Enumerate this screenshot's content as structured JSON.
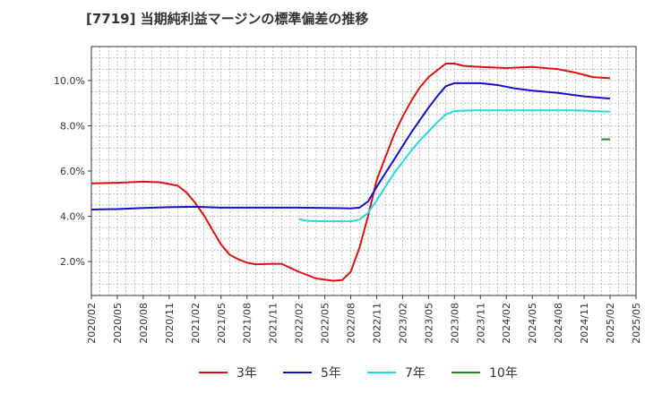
{
  "title": "[7719]  当期純利益マージンの標準偏差の推移",
  "chart_data": {
    "type": "line",
    "title": "[7719]  当期純利益マージンの標準偏差の推移",
    "xlabel": "",
    "ylabel": "",
    "x_ticks": [
      "2020/02",
      "2020/05",
      "2020/08",
      "2020/11",
      "2021/02",
      "2021/05",
      "2021/08",
      "2021/11",
      "2022/02",
      "2022/05",
      "2022/08",
      "2022/11",
      "2023/02",
      "2023/05",
      "2023/08",
      "2023/11",
      "2024/02",
      "2024/05",
      "2024/08",
      "2024/11",
      "2025/02",
      "2025/05"
    ],
    "y_ticks": [
      "2.0%",
      "4.0%",
      "6.0%",
      "8.0%",
      "10.0%"
    ],
    "xlim": [
      "2020/02",
      "2025/05"
    ],
    "ylim": [
      0.5,
      11.5
    ],
    "grid": true,
    "legend_position": "bottom",
    "series": [
      {
        "name": "3年",
        "color": "#dd1111",
        "points": [
          [
            "2020/02",
            5.45
          ],
          [
            "2020/05",
            5.48
          ],
          [
            "2020/08",
            5.53
          ],
          [
            "2020/10",
            5.5
          ],
          [
            "2020/12",
            5.35
          ],
          [
            "2021/01",
            5.05
          ],
          [
            "2021/02",
            4.6
          ],
          [
            "2021/03",
            4.05
          ],
          [
            "2021/04",
            3.4
          ],
          [
            "2021/05",
            2.75
          ],
          [
            "2021/06",
            2.3
          ],
          [
            "2021/07",
            2.1
          ],
          [
            "2021/08",
            1.95
          ],
          [
            "2021/09",
            1.88
          ],
          [
            "2021/11",
            1.9
          ],
          [
            "2021/12",
            1.9
          ],
          [
            "2022/02",
            1.55
          ],
          [
            "2022/04",
            1.25
          ],
          [
            "2022/06",
            1.15
          ],
          [
            "2022/07",
            1.18
          ],
          [
            "2022/08",
            1.55
          ],
          [
            "2022/09",
            2.6
          ],
          [
            "2022/10",
            4.0
          ],
          [
            "2022/11",
            5.6
          ],
          [
            "2022/12",
            6.6
          ],
          [
            "2023/01",
            7.6
          ],
          [
            "2023/02",
            8.4
          ],
          [
            "2023/03",
            9.1
          ],
          [
            "2023/04",
            9.7
          ],
          [
            "2023/05",
            10.15
          ],
          [
            "2023/06",
            10.45
          ],
          [
            "2023/07",
            10.75
          ],
          [
            "2023/08",
            10.75
          ],
          [
            "2023/09",
            10.65
          ],
          [
            "2023/11",
            10.6
          ],
          [
            "2024/02",
            10.55
          ],
          [
            "2024/05",
            10.6
          ],
          [
            "2024/08",
            10.5
          ],
          [
            "2024/10",
            10.35
          ],
          [
            "2024/12",
            10.15
          ],
          [
            "2025/02",
            10.1
          ]
        ]
      },
      {
        "name": "5年",
        "color": "#1111cc",
        "points": [
          [
            "2020/02",
            4.3
          ],
          [
            "2020/05",
            4.32
          ],
          [
            "2020/08",
            4.37
          ],
          [
            "2020/11",
            4.4
          ],
          [
            "2021/02",
            4.42
          ],
          [
            "2021/05",
            4.38
          ],
          [
            "2021/08",
            4.38
          ],
          [
            "2021/11",
            4.38
          ],
          [
            "2022/02",
            4.38
          ],
          [
            "2022/05",
            4.37
          ],
          [
            "2022/08",
            4.35
          ],
          [
            "2022/09",
            4.38
          ],
          [
            "2022/10",
            4.65
          ],
          [
            "2022/11",
            5.3
          ],
          [
            "2022/12",
            5.9
          ],
          [
            "2023/01",
            6.5
          ],
          [
            "2023/02",
            7.1
          ],
          [
            "2023/03",
            7.7
          ],
          [
            "2023/04",
            8.25
          ],
          [
            "2023/05",
            8.8
          ],
          [
            "2023/06",
            9.3
          ],
          [
            "2023/07",
            9.75
          ],
          [
            "2023/08",
            9.88
          ],
          [
            "2023/10",
            9.88
          ],
          [
            "2023/11",
            9.88
          ],
          [
            "2024/01",
            9.8
          ],
          [
            "2024/03",
            9.65
          ],
          [
            "2024/05",
            9.55
          ],
          [
            "2024/08",
            9.45
          ],
          [
            "2024/11",
            9.3
          ],
          [
            "2025/02",
            9.2
          ]
        ]
      },
      {
        "name": "7年",
        "color": "#22dddd",
        "points": [
          [
            "2022/02",
            3.88
          ],
          [
            "2022/03",
            3.8
          ],
          [
            "2022/05",
            3.78
          ],
          [
            "2022/08",
            3.78
          ],
          [
            "2022/09",
            3.85
          ],
          [
            "2022/10",
            4.15
          ],
          [
            "2022/11",
            4.7
          ],
          [
            "2022/12",
            5.3
          ],
          [
            "2023/01",
            5.9
          ],
          [
            "2023/02",
            6.4
          ],
          [
            "2023/03",
            6.9
          ],
          [
            "2023/04",
            7.35
          ],
          [
            "2023/05",
            7.75
          ],
          [
            "2023/06",
            8.15
          ],
          [
            "2023/07",
            8.5
          ],
          [
            "2023/08",
            8.65
          ],
          [
            "2023/10",
            8.68
          ],
          [
            "2024/02",
            8.68
          ],
          [
            "2024/06",
            8.68
          ],
          [
            "2024/10",
            8.68
          ],
          [
            "2025/02",
            8.62
          ]
        ]
      },
      {
        "name": "10年",
        "color": "#228822",
        "points": [
          [
            "2025/01",
            7.4
          ],
          [
            "2025/02",
            7.4
          ]
        ]
      }
    ]
  }
}
